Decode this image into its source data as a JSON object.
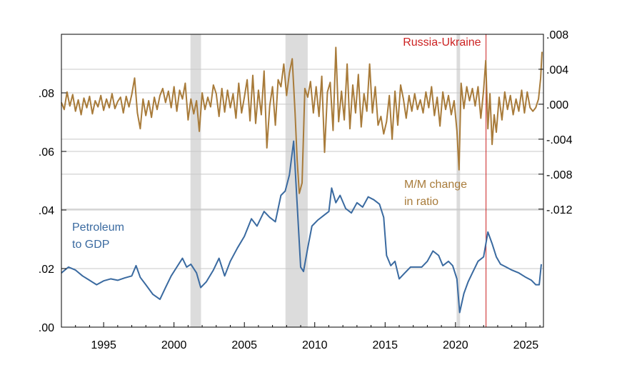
{
  "chart_data": {
    "type": "line",
    "title": "",
    "x_range": [
      1992.0,
      2026.25
    ],
    "x_ticks": [
      {
        "value": 1995,
        "label": "1995"
      },
      {
        "value": 2000,
        "label": "2000"
      },
      {
        "value": 2005,
        "label": "2005"
      },
      {
        "value": 2010,
        "label": "2010"
      },
      {
        "value": 2015,
        "label": "2015"
      },
      {
        "value": 2020,
        "label": "2020"
      },
      {
        "value": 2025,
        "label": "2025"
      }
    ],
    "left_axis": {
      "range": [
        0.0,
        0.1
      ],
      "ticks": [
        {
          "value": 0.0,
          "label": ".00"
        },
        {
          "value": 0.02,
          "label": ".02"
        },
        {
          "value": 0.04,
          "label": ".04"
        },
        {
          "value": 0.06,
          "label": ".06"
        },
        {
          "value": 0.08,
          "label": ".08"
        }
      ]
    },
    "right_axis": {
      "range": [
        -0.0255,
        0.008
      ],
      "ticks": [
        {
          "value": 0.008,
          "label": ".008"
        },
        {
          "value": 0.004,
          "label": ".004"
        },
        {
          "value": 0.0,
          "label": ".000"
        },
        {
          "value": -0.004,
          "label": "-.004"
        },
        {
          "value": -0.008,
          "label": "-.008"
        },
        {
          "value": -0.012,
          "label": "-.012"
        }
      ]
    },
    "grid": true,
    "recessions": [
      [
        2001.17,
        2001.92
      ],
      [
        2007.92,
        2009.5
      ],
      [
        2020.08,
        2020.33
      ]
    ],
    "event_line": {
      "x": 2022.17,
      "label": "Russia-Ukraine",
      "color": "#cc2222"
    },
    "series": [
      {
        "name": "Petroleum to GDP",
        "label_lines": [
          "Petroleum",
          "to GDP"
        ],
        "axis": "left",
        "color": "#3a6aa0",
        "points": [
          [
            1992.0,
            0.0185
          ],
          [
            1992.5,
            0.0205
          ],
          [
            1993.0,
            0.0195
          ],
          [
            1993.5,
            0.0175
          ],
          [
            1994.0,
            0.016
          ],
          [
            1994.5,
            0.0145
          ],
          [
            1995.0,
            0.0158
          ],
          [
            1995.5,
            0.0165
          ],
          [
            1996.0,
            0.016
          ],
          [
            1996.5,
            0.0168
          ],
          [
            1997.0,
            0.0175
          ],
          [
            1997.3,
            0.021
          ],
          [
            1997.6,
            0.017
          ],
          [
            1998.0,
            0.0145
          ],
          [
            1998.5,
            0.0112
          ],
          [
            1999.0,
            0.0095
          ],
          [
            1999.4,
            0.0135
          ],
          [
            1999.8,
            0.0175
          ],
          [
            2000.2,
            0.0205
          ],
          [
            2000.6,
            0.0235
          ],
          [
            2000.9,
            0.0205
          ],
          [
            2001.2,
            0.0215
          ],
          [
            2001.6,
            0.0185
          ],
          [
            2001.9,
            0.0135
          ],
          [
            2002.3,
            0.0155
          ],
          [
            2002.8,
            0.0195
          ],
          [
            2003.2,
            0.0235
          ],
          [
            2003.6,
            0.0175
          ],
          [
            2004.0,
            0.0225
          ],
          [
            2004.5,
            0.027
          ],
          [
            2005.0,
            0.031
          ],
          [
            2005.5,
            0.037
          ],
          [
            2005.9,
            0.0345
          ],
          [
            2006.4,
            0.0395
          ],
          [
            2006.8,
            0.0375
          ],
          [
            2007.2,
            0.036
          ],
          [
            2007.6,
            0.045
          ],
          [
            2007.9,
            0.0465
          ],
          [
            2008.2,
            0.052
          ],
          [
            2008.5,
            0.0635
          ],
          [
            2008.75,
            0.042
          ],
          [
            2009.0,
            0.0205
          ],
          [
            2009.2,
            0.019
          ],
          [
            2009.5,
            0.027
          ],
          [
            2009.8,
            0.0345
          ],
          [
            2010.2,
            0.0365
          ],
          [
            2010.6,
            0.038
          ],
          [
            2011.0,
            0.0395
          ],
          [
            2011.2,
            0.0475
          ],
          [
            2011.5,
            0.0425
          ],
          [
            2011.8,
            0.045
          ],
          [
            2012.2,
            0.0405
          ],
          [
            2012.6,
            0.039
          ],
          [
            2013.0,
            0.0425
          ],
          [
            2013.4,
            0.041
          ],
          [
            2013.8,
            0.0445
          ],
          [
            2014.2,
            0.0435
          ],
          [
            2014.6,
            0.042
          ],
          [
            2014.9,
            0.0375
          ],
          [
            2015.1,
            0.0245
          ],
          [
            2015.4,
            0.021
          ],
          [
            2015.7,
            0.0225
          ],
          [
            2016.0,
            0.0165
          ],
          [
            2016.4,
            0.0185
          ],
          [
            2016.8,
            0.0205
          ],
          [
            2017.2,
            0.0205
          ],
          [
            2017.6,
            0.0205
          ],
          [
            2018.0,
            0.0225
          ],
          [
            2018.4,
            0.026
          ],
          [
            2018.8,
            0.0245
          ],
          [
            2019.1,
            0.021
          ],
          [
            2019.5,
            0.0225
          ],
          [
            2019.8,
            0.021
          ],
          [
            2020.1,
            0.0165
          ],
          [
            2020.3,
            0.005
          ],
          [
            2020.6,
            0.0115
          ],
          [
            2020.9,
            0.0155
          ],
          [
            2021.2,
            0.0185
          ],
          [
            2021.6,
            0.0225
          ],
          [
            2022.0,
            0.024
          ],
          [
            2022.3,
            0.0325
          ],
          [
            2022.6,
            0.0285
          ],
          [
            2022.9,
            0.024
          ],
          [
            2023.2,
            0.0215
          ],
          [
            2023.6,
            0.0205
          ],
          [
            2024.0,
            0.0195
          ],
          [
            2024.5,
            0.0185
          ],
          [
            2025.0,
            0.017
          ],
          [
            2025.4,
            0.016
          ],
          [
            2025.7,
            0.0145
          ],
          [
            2025.95,
            0.0145
          ],
          [
            2026.1,
            0.0215
          ]
        ]
      },
      {
        "name": "M/M change in ratio",
        "label_lines": [
          "M/M change",
          "in ratio"
        ],
        "axis": "right",
        "color": "#a87b3a",
        "points": [
          [
            1992.0,
            0.0002
          ],
          [
            1992.2,
            -0.0006
          ],
          [
            1992.4,
            0.0014
          ],
          [
            1992.6,
            -0.0002
          ],
          [
            1992.8,
            0.0011
          ],
          [
            1993.0,
            -0.0008
          ],
          [
            1993.2,
            0.0005
          ],
          [
            1993.4,
            -0.0012
          ],
          [
            1993.6,
            0.0007
          ],
          [
            1993.8,
            -0.0004
          ],
          [
            1994.0,
            0.0009
          ],
          [
            1994.2,
            -0.0011
          ],
          [
            1994.4,
            0.0004
          ],
          [
            1994.6,
            -0.0003
          ],
          [
            1994.8,
            0.001
          ],
          [
            1995.0,
            -0.0007
          ],
          [
            1995.2,
            0.0006
          ],
          [
            1995.4,
            -0.0004
          ],
          [
            1995.6,
            0.0012
          ],
          [
            1995.8,
            -0.0005
          ],
          [
            1996.0,
            0.0003
          ],
          [
            1996.2,
            0.0008
          ],
          [
            1996.4,
            -0.001
          ],
          [
            1996.6,
            0.0009
          ],
          [
            1996.8,
            -0.0003
          ],
          [
            1997.0,
            0.0011
          ],
          [
            1997.2,
            0.003
          ],
          [
            1997.4,
            -0.001
          ],
          [
            1997.6,
            -0.0028
          ],
          [
            1997.8,
            0.0006
          ],
          [
            1998.0,
            -0.0013
          ],
          [
            1998.2,
            0.0004
          ],
          [
            1998.4,
            -0.0015
          ],
          [
            1998.6,
            0.0008
          ],
          [
            1998.8,
            -0.0006
          ],
          [
            1999.0,
            0.001
          ],
          [
            1999.2,
            0.0018
          ],
          [
            1999.4,
            0.0002
          ],
          [
            1999.6,
            0.0015
          ],
          [
            1999.8,
            -0.0004
          ],
          [
            2000.0,
            0.002
          ],
          [
            2000.2,
            -0.0008
          ],
          [
            2000.4,
            0.0016
          ],
          [
            2000.6,
            0.0006
          ],
          [
            2000.8,
            0.0024
          ],
          [
            2001.0,
            -0.0018
          ],
          [
            2001.2,
            0.0006
          ],
          [
            2001.4,
            -0.0011
          ],
          [
            2001.6,
            0.0004
          ],
          [
            2001.8,
            -0.0031
          ],
          [
            2002.0,
            0.0013
          ],
          [
            2002.2,
            -0.0006
          ],
          [
            2002.4,
            0.0008
          ],
          [
            2002.6,
            -0.0003
          ],
          [
            2002.8,
            0.0022
          ],
          [
            2003.0,
            0.0012
          ],
          [
            2003.2,
            -0.0014
          ],
          [
            2003.4,
            0.0018
          ],
          [
            2003.6,
            -0.0009
          ],
          [
            2003.8,
            0.0016
          ],
          [
            2004.0,
            -0.0004
          ],
          [
            2004.2,
            0.0012
          ],
          [
            2004.4,
            -0.0016
          ],
          [
            2004.6,
            0.0024
          ],
          [
            2004.8,
            -0.001
          ],
          [
            2005.0,
            0.0008
          ],
          [
            2005.2,
            0.0028
          ],
          [
            2005.4,
            -0.0019
          ],
          [
            2005.6,
            0.0033
          ],
          [
            2005.8,
            -0.0022
          ],
          [
            2006.0,
            0.0016
          ],
          [
            2006.2,
            -0.0012
          ],
          [
            2006.4,
            0.0038
          ],
          [
            2006.6,
            -0.005
          ],
          [
            2006.8,
            -0.0002
          ],
          [
            2007.0,
            0.002
          ],
          [
            2007.2,
            -0.0024
          ],
          [
            2007.4,
            0.0028
          ],
          [
            2007.6,
            0.002
          ],
          [
            2007.8,
            0.0046
          ],
          [
            2008.0,
            0.001
          ],
          [
            2008.2,
            0.0036
          ],
          [
            2008.4,
            0.0052
          ],
          [
            2008.6,
            -0.001
          ],
          [
            2008.75,
            -0.0064
          ],
          [
            2008.9,
            -0.0102
          ],
          [
            2009.1,
            -0.009
          ],
          [
            2009.3,
            0.0018
          ],
          [
            2009.5,
            0.0008
          ],
          [
            2009.7,
            0.0026
          ],
          [
            2009.9,
            -0.001
          ],
          [
            2010.1,
            0.002
          ],
          [
            2010.3,
            -0.0014
          ],
          [
            2010.5,
            0.0032
          ],
          [
            2010.7,
            -0.0055
          ],
          [
            2010.9,
            0.0014
          ],
          [
            2011.1,
            0.0025
          ],
          [
            2011.3,
            -0.003
          ],
          [
            2011.5,
            0.0065
          ],
          [
            2011.7,
            -0.002
          ],
          [
            2011.9,
            0.0015
          ],
          [
            2012.1,
            -0.0018
          ],
          [
            2012.3,
            0.0046
          ],
          [
            2012.5,
            -0.0028
          ],
          [
            2012.7,
            0.0022
          ],
          [
            2012.9,
            -0.001
          ],
          [
            2013.1,
            0.0034
          ],
          [
            2013.3,
            -0.0026
          ],
          [
            2013.5,
            0.0012
          ],
          [
            2013.7,
            -0.0008
          ],
          [
            2013.9,
            0.0046
          ],
          [
            2014.1,
            -0.001
          ],
          [
            2014.3,
            0.002
          ],
          [
            2014.5,
            -0.0024
          ],
          [
            2014.7,
            -0.0014
          ],
          [
            2014.9,
            -0.0034
          ],
          [
            2015.1,
            -0.002
          ],
          [
            2015.3,
            0.001
          ],
          [
            2015.5,
            -0.004
          ],
          [
            2015.7,
            0.0015
          ],
          [
            2015.9,
            -0.0024
          ],
          [
            2016.1,
            0.0022
          ],
          [
            2016.3,
            0.0006
          ],
          [
            2016.5,
            -0.0016
          ],
          [
            2016.7,
            0.001
          ],
          [
            2016.9,
            -0.0008
          ],
          [
            2017.1,
            0.0012
          ],
          [
            2017.3,
            -0.0006
          ],
          [
            2017.5,
            0.0005
          ],
          [
            2017.7,
            -0.001
          ],
          [
            2017.9,
            0.0014
          ],
          [
            2018.1,
            -0.0004
          ],
          [
            2018.3,
            0.002
          ],
          [
            2018.5,
            -0.0013
          ],
          [
            2018.7,
            0.0008
          ],
          [
            2018.9,
            -0.0025
          ],
          [
            2019.1,
            0.0014
          ],
          [
            2019.3,
            -0.0006
          ],
          [
            2019.5,
            0.001
          ],
          [
            2019.7,
            -0.0012
          ],
          [
            2019.9,
            0.0004
          ],
          [
            2020.1,
            -0.003
          ],
          [
            2020.25,
            -0.0075
          ],
          [
            2020.4,
            0.0024
          ],
          [
            2020.6,
            -0.0005
          ],
          [
            2020.8,
            0.002
          ],
          [
            2021.0,
            0.0004
          ],
          [
            2021.2,
            0.0018
          ],
          [
            2021.4,
            -0.0002
          ],
          [
            2021.6,
            0.002
          ],
          [
            2021.8,
            -0.0016
          ],
          [
            2022.0,
            0.0016
          ],
          [
            2022.15,
            0.005
          ],
          [
            2022.3,
            -0.0028
          ],
          [
            2022.45,
            0.0012
          ],
          [
            2022.6,
            -0.0046
          ],
          [
            2022.75,
            -0.0012
          ],
          [
            2022.9,
            -0.0032
          ],
          [
            2023.1,
            0.0008
          ],
          [
            2023.3,
            -0.0018
          ],
          [
            2023.5,
            0.0014
          ],
          [
            2023.7,
            -0.0006
          ],
          [
            2023.9,
            0.001
          ],
          [
            2024.1,
            -0.0012
          ],
          [
            2024.3,
            0.0006
          ],
          [
            2024.5,
            -0.0008
          ],
          [
            2024.7,
            0.0016
          ],
          [
            2024.9,
            -0.001
          ],
          [
            2025.1,
            0.0014
          ],
          [
            2025.3,
            -0.0004
          ],
          [
            2025.5,
            -0.0008
          ],
          [
            2025.7,
            -0.0004
          ],
          [
            2025.9,
            0.0006
          ],
          [
            2026.05,
            0.003
          ],
          [
            2026.15,
            0.006
          ]
        ]
      }
    ]
  }
}
